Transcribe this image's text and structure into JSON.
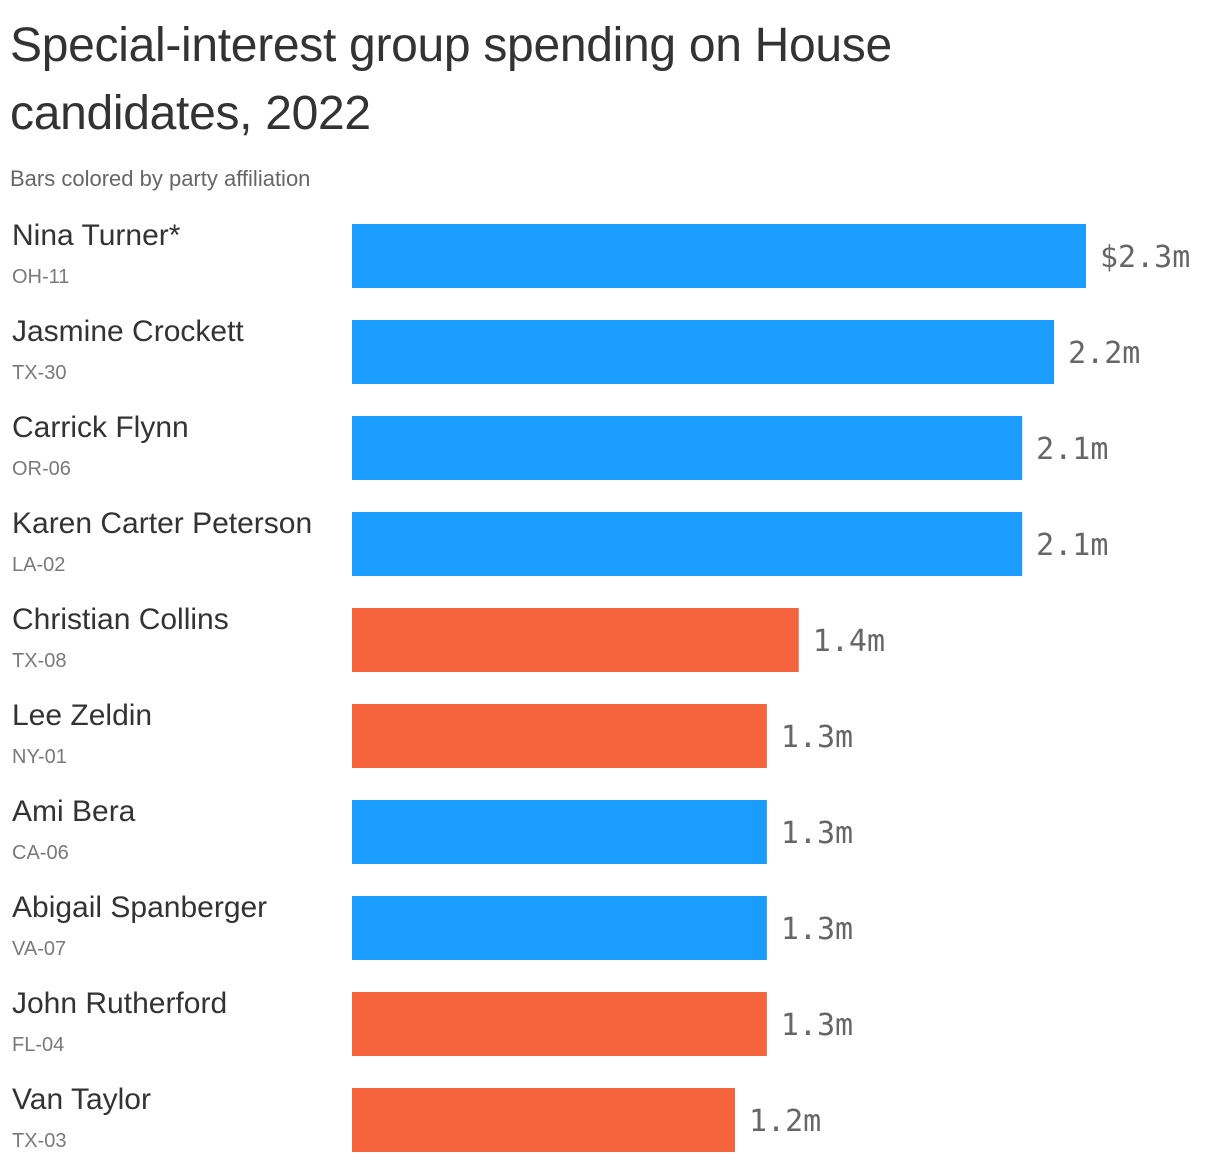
{
  "chart_data": {
    "type": "bar",
    "orientation": "horizontal",
    "title": "Special-interest group spending on House candidates, 2022",
    "subtitle": "Bars colored by party affiliation",
    "categories": [
      "Nina Turner*",
      "Jasmine Crockett",
      "Carrick Flynn",
      "Karen Carter Peterson",
      "Christian Collins",
      "Lee Zeldin",
      "Ami Bera",
      "Abigail Spanberger",
      "John Rutherford",
      "Van Taylor"
    ],
    "districts": [
      "OH-11",
      "TX-30",
      "OR-06",
      "LA-02",
      "TX-08",
      "NY-01",
      "CA-06",
      "VA-07",
      "FL-04",
      "TX-03"
    ],
    "values": [
      2.3,
      2.2,
      2.1,
      2.1,
      1.4,
      1.3,
      1.3,
      1.3,
      1.3,
      1.2
    ],
    "value_labels": [
      "$2.3m",
      "2.2m",
      "2.1m",
      "2.1m",
      "1.4m",
      "1.3m",
      "1.3m",
      "1.3m",
      "1.3m",
      "1.2m"
    ],
    "party": [
      "D",
      "D",
      "D",
      "D",
      "R",
      "R",
      "D",
      "D",
      "R",
      "R"
    ],
    "colors": {
      "D": "#1a9dff",
      "R": "#f6643e"
    },
    "xlim": [
      0,
      2.3
    ],
    "grid": false,
    "legend": "none"
  }
}
